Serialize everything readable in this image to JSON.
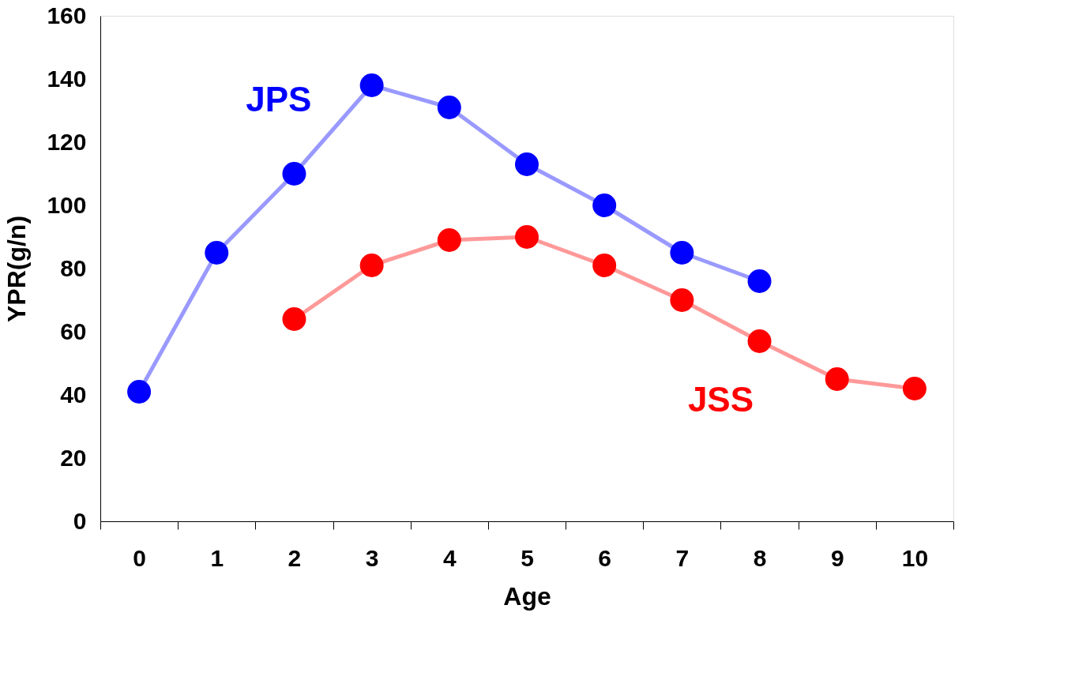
{
  "chart_data": {
    "type": "line",
    "xlabel": "Age",
    "ylabel": "YPR(g/n)",
    "categories": [
      "0",
      "1",
      "2",
      "3",
      "4",
      "5",
      "6",
      "7",
      "8",
      "9",
      "10"
    ],
    "series": [
      {
        "name": "JPS",
        "color": "#0000ff",
        "values": [
          41,
          85,
          110,
          138,
          131,
          113,
          100,
          85,
          76,
          null,
          null
        ]
      },
      {
        "name": "JSS",
        "color": "#ff0000",
        "values": [
          null,
          null,
          64,
          81,
          89,
          90,
          81,
          70,
          57,
          45,
          42
        ]
      }
    ],
    "ylim": [
      0,
      160
    ],
    "yticks": [
      0,
      20,
      40,
      60,
      80,
      100,
      120,
      140,
      160
    ],
    "marker": "circle",
    "legend": false,
    "grid": false
  }
}
